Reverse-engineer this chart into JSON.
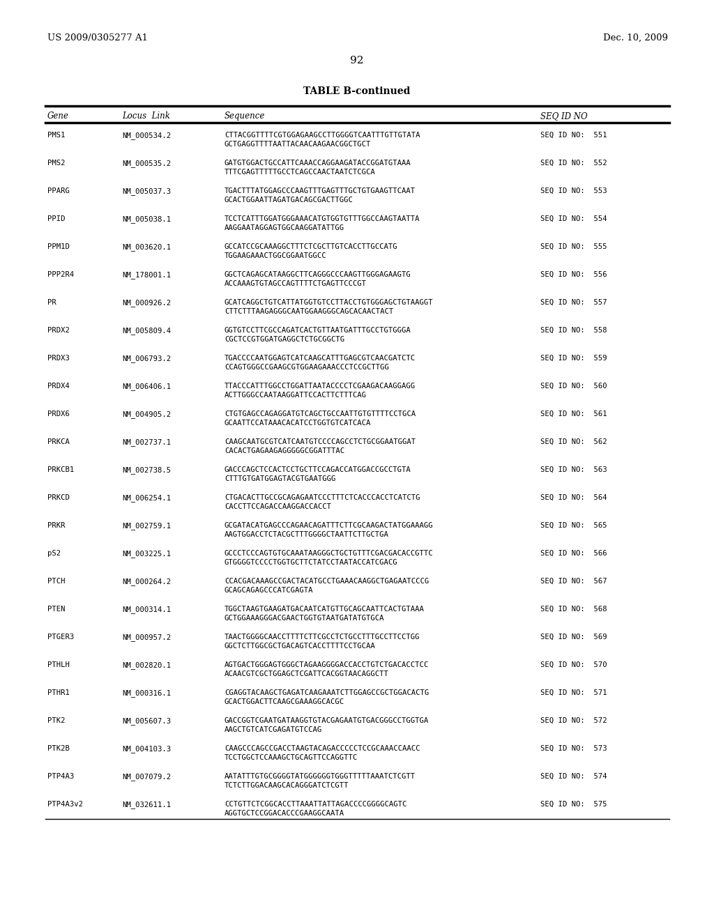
{
  "header_left": "US 2009/0305277 A1",
  "header_right": "Dec. 10, 2009",
  "page_number": "92",
  "table_title": "TABLE B-continued",
  "rows": [
    [
      "PMS1",
      "NM_000534.2",
      "CTTACGGTTTTCGTGGAGAAGCCTTGGGGTCAATTTGTTGTATA",
      "GCTGAGGTTTTAATTACAACAAGAACGGCTGCT",
      "SEQ ID NO:  551"
    ],
    [
      "PMS2",
      "NM_000535.2",
      "GATGTGGACTGCCATTCAAACCAGGAAGATACCGGATGTAAA",
      "TTTCGAGTTTTTGCCTCAGCCAACTAATCTCGCA",
      "SEQ ID NO:  552"
    ],
    [
      "PPARG",
      "NM_005037.3",
      "TGACTTTATGGAGCCCAAGTTTGAGTTTGCTGTGAAGTTCAAT",
      "GCACTGGAATTAGATGACAGCGACTTGGC",
      "SEQ ID NO:  553"
    ],
    [
      "PPID",
      "NM_005038.1",
      "TCCTCATTTGGATGGGAAACATGTGGTGTTTGGCCAAGTAATTA",
      "AAGGAATAGGAGTGGCAAGGATATTGG",
      "SEQ ID NO:  554"
    ],
    [
      "PPM1D",
      "NM_003620.1",
      "GCCATCCGCAAAGGCTTTCTCGCTTGTCACCTTGCCATG",
      "TGGAAGAAACTGGCGGAATGGCC",
      "SEQ ID NO:  555"
    ],
    [
      "PPP2R4",
      "NM_178001.1",
      "GGCTCAGAGCATAAGGCTTCAGGGCCCAAGTTGGGAGAAGTG",
      "ACCAAAGTGTAGCCAGTTTTCTGAGTTCCCGT",
      "SEQ ID NO:  556"
    ],
    [
      "PR",
      "NM_000926.2",
      "GCATCAGGCTGTCATTATGGTGTCCTTACCTGTGGGAGCTGTAAGGT",
      "CTTCTTTAAGAGGGCAATGGAAGGGCAGCACAACTACT",
      "SEQ ID NO:  557"
    ],
    [
      "PRDX2",
      "NM_005809.4",
      "GGTGTCCTTCGCCAGATCACTGTTAATGATTTGCCTGTGGGA",
      "CGCTCCGTGGATGAGGCTCTGCGGCTG",
      "SEQ ID NO:  558"
    ],
    [
      "PRDX3",
      "NM_006793.2",
      "TGACCCCAATGGAGTCATCAAGCATTTGAGCGTCAACGATCTC",
      "CCAGTGGGCCGAAGCGTGGAAGAAACCCTCCGCTTGG",
      "SEQ ID NO:  559"
    ],
    [
      "PRDX4",
      "NM_006406.1",
      "TTACCCATTTGGCCTGGATTAATACCCCTCGAAGACAAGGAGG",
      "ACTTGGGCCAATAAGGATTCCACTTCTTTCAG",
      "SEQ ID NO:  560"
    ],
    [
      "PRDX6",
      "NM_004905.2",
      "CTGTGAGCCAGAGGATGTCAGCTGCCAATTGTGTTTTCCTGCA",
      "GCAATTCCATAAACACATCCTGGTGTCATCACA",
      "SEQ ID NO:  561"
    ],
    [
      "PRKCA",
      "NM_002737.1",
      "CAAGCAATGCGTCATCAATGTCCCCAGCCTCTGCGGAATGGAT",
      "CACACTGAGAAGAGGGGGCGGATTTAC",
      "SEQ ID NO:  562"
    ],
    [
      "PRKCB1",
      "NM_002738.5",
      "GACCCAGCTCCACTCCTGCTTCCAGACCATGGACCGCCTGTA",
      "CTTTGTGATGGAGTACGTGAATGGG",
      "SEQ ID NO:  563"
    ],
    [
      "PRKCD",
      "NM_006254.1",
      "CTGACACTTGCCGCAGAGAATCCCTTTCTCACCCACCTCATCTG",
      "CACCTTCCAGACCAAGGACCACCT",
      "SEQ ID NO:  564"
    ],
    [
      "PRKR",
      "NM_002759.1",
      "GCGATACATGAGCCCAGAACAGATTTCTTCGCAAGACTATGGAAAGG",
      "AAGTGGACCTCTACGCTTTGGGGCTAATTCTTGCTGA",
      "SEQ ID NO:  565"
    ],
    [
      "pS2",
      "NM_003225.1",
      "GCCCTCCCAGTGTGCAAATAAGGGCTGCTGTTTCGACGACACCGTTC",
      "GTGGGGTCCCCTGGTGCTTCTATCCTAATACCATCGACG",
      "SEQ ID NO:  566"
    ],
    [
      "PTCH",
      "NM_000264.2",
      "CCACGACAAAGCCGACTACATGCCTGAAACAAGGCTGAGAATCCCG",
      "GCAGCAGAGCCCATCGAGTA",
      "SEQ ID NO:  567"
    ],
    [
      "PTEN",
      "NM_000314.1",
      "TGGCTAAGTGAAGATGACAATCATGTTGCAGCAATTCACTGTAAA",
      "GCTGGAAAGGGACGAACTGGTGTAATGATATGTGCA",
      "SEQ ID NO:  568"
    ],
    [
      "PTGER3",
      "NM_000957.2",
      "TAACTGGGGCAACCTTTTCTTCGCCTCTGCCTTTGCCTTCCTGG",
      "GGCTCTTGGCGCTGACAGTCACCTTTTCCTGCAA",
      "SEQ ID NO:  569"
    ],
    [
      "PTHLH",
      "NM_002820.1",
      "AGTGACTGGGAGTGGGCTAGAAGGGGACCACCTGTCTGACACCTCC",
      "ACAACGTCGCTGGAGCTCGATTCACGGTAACAGGCTT",
      "SEQ ID NO:  570"
    ],
    [
      "PTHR1",
      "NM_000316.1",
      "CGAGGTACAAGCTGAGATCAAGAAATCTTGGAGCCGCTGGACACTG",
      "GCACTGGACTTCAAGCGAAAGGCACGC",
      "SEQ ID NO:  571"
    ],
    [
      "PTK2",
      "NM_005607.3",
      "GACCGGTCGAATGATAAGGTGTACGAGAATGTGACGGGCCTGGTGA",
      "AAGCTGTCATCGAGATGTCCAG",
      "SEQ ID NO:  572"
    ],
    [
      "PTK2B",
      "NM_004103.3",
      "CAAGCCCAGCCGACCTAAGTACAGACCCCCTCCGCAAACCAACC",
      "TCCTGGCTCCAAAGCTGCAGTTCCAGGTTC",
      "SEQ ID NO:  573"
    ],
    [
      "PTP4A3",
      "NM_007079.2",
      "AATATTTGTGCGGGGTATGGGGGGTGGGTTTTTAAATCTCGTT",
      "TCTCTTGGACAAGCACAGGGATCTCGTT",
      "SEQ ID NO:  574"
    ],
    [
      "PTP4A3v2",
      "NM_032611.1",
      "CCTGTTCTCGGCACCTTAAATTATTAGACCCCGGGGCAGTC",
      "AGGTGCTCCGGACACCCGAAGGCAATA",
      "SEQ ID NO:  575"
    ]
  ]
}
